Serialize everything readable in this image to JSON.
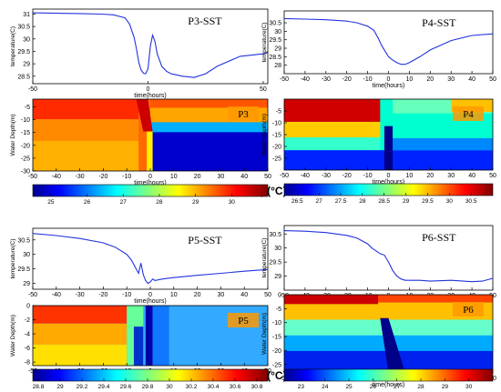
{
  "figure": {
    "colorbar_caption": "Temp(°C)"
  },
  "chart_data": [
    {
      "id": "p3sst",
      "type": "line",
      "title": "P3-SST",
      "xlabel": "time(hours)",
      "ylabel": "temperature(C)",
      "xlim": [
        -50,
        52
      ],
      "ylim": [
        28.2,
        31.2
      ],
      "xticks": [
        -50,
        0,
        50
      ],
      "yticks": [
        28.5,
        29,
        29.5,
        30,
        30.5,
        31
      ],
      "series": [
        {
          "x": [
            -50,
            -30,
            -20,
            -15,
            -10,
            -8,
            -6,
            -5,
            -4,
            -3,
            -2,
            -1,
            0,
            1,
            2,
            3,
            4,
            6,
            8,
            10,
            15,
            20,
            25,
            30,
            40,
            50,
            52
          ],
          "y": [
            31.05,
            31.02,
            31,
            30.97,
            30.85,
            30.6,
            30.05,
            29.6,
            29.05,
            28.75,
            28.62,
            28.6,
            28.8,
            29.7,
            30.15,
            29.9,
            29.4,
            28.9,
            28.7,
            28.6,
            28.5,
            28.45,
            28.6,
            28.9,
            29.3,
            29.4,
            29.45
          ]
        }
      ]
    },
    {
      "id": "p4sst",
      "type": "line",
      "title": "P4-SST",
      "xlabel": "time(hours)",
      "ylabel": "temperature(C)",
      "xlim": [
        -50,
        50
      ],
      "ylim": [
        27.5,
        31.2
      ],
      "xticks": [
        -50,
        -40,
        -30,
        -20,
        -10,
        0,
        10,
        20,
        30,
        40,
        50
      ],
      "yticks": [
        28,
        28.5,
        29,
        29.5,
        30,
        30.5
      ],
      "series": [
        {
          "x": [
            -50,
            -40,
            -30,
            -20,
            -15,
            -10,
            -7,
            -5,
            -3,
            -1,
            0,
            2,
            4,
            6,
            8,
            10,
            15,
            20,
            30,
            40,
            50
          ],
          "y": [
            30.75,
            30.72,
            30.68,
            30.6,
            30.5,
            30.3,
            30.05,
            29.6,
            29.1,
            28.7,
            28.5,
            28.3,
            28.15,
            28.05,
            28.05,
            28.15,
            28.5,
            28.9,
            29.45,
            29.75,
            29.85
          ]
        }
      ]
    },
    {
      "id": "p3heat",
      "type": "heatmap",
      "label": "P3",
      "xlabel": "time(hours)",
      "ylabel": "Water Depth(m)",
      "xlim": [
        -50,
        50
      ],
      "ylim": [
        -30,
        -2
      ],
      "xticks": [
        -50,
        -40,
        -30,
        -20,
        -10,
        0,
        10,
        20,
        30,
        40,
        50
      ],
      "yticks": [
        -5,
        -10,
        -15,
        -20,
        -25,
        -30
      ]
    },
    {
      "id": "p4heat",
      "type": "heatmap",
      "label": "P4",
      "xlabel": "time(hours)",
      "ylabel": "Water Depth(m)",
      "xlim": [
        -50,
        50
      ],
      "ylim": [
        -30,
        0
      ],
      "xticks": [
        -50,
        -40,
        -30,
        -20,
        -10,
        0,
        10,
        20,
        30,
        40,
        50
      ],
      "yticks": [
        -5,
        -10,
        -15,
        -20,
        -25
      ]
    },
    {
      "id": "cb1",
      "type": "heatmap",
      "role": "colorbar",
      "range": [
        24.5,
        31
      ],
      "ticks": [
        25,
        26,
        27,
        28,
        29,
        30
      ]
    },
    {
      "id": "cb2",
      "type": "heatmap",
      "role": "colorbar",
      "range": [
        26.2,
        31
      ],
      "ticks": [
        26.5,
        27,
        27.5,
        28,
        28.5,
        29,
        29.5,
        30,
        30.5
      ]
    },
    {
      "id": "p5sst",
      "type": "line",
      "title": "P5-SST",
      "xlabel": "time(hours)",
      "ylabel": "temperature(C)",
      "xlim": [
        -50,
        50
      ],
      "ylim": [
        28.8,
        30.9
      ],
      "xticks": [
        -50,
        -40,
        -30,
        -20,
        -10,
        0,
        10,
        20,
        30,
        40,
        50
      ],
      "yticks": [
        29,
        29.5,
        30,
        30.5
      ],
      "series": [
        {
          "x": [
            -50,
            -40,
            -30,
            -20,
            -15,
            -10,
            -8,
            -6,
            -5,
            -4,
            -3,
            -2,
            -1,
            0,
            1,
            2,
            5,
            10,
            20,
            30,
            40,
            50
          ],
          "y": [
            30.72,
            30.65,
            30.55,
            30.4,
            30.25,
            30,
            29.8,
            29.5,
            29.35,
            29.7,
            29.3,
            29.1,
            29.0,
            29.05,
            29.15,
            29.1,
            29.15,
            29.2,
            29.28,
            29.35,
            29.42,
            29.48
          ]
        }
      ]
    },
    {
      "id": "p6sst",
      "type": "line",
      "title": "P6-SST",
      "xlabel": "time(hours)",
      "ylabel": "temperature(C)",
      "xlim": [
        -50,
        50
      ],
      "ylim": [
        28.5,
        30.8
      ],
      "xticks": [
        -50,
        -40,
        -30,
        -20,
        -10,
        0,
        10,
        20,
        30,
        40,
        50
      ],
      "yticks": [
        29,
        29.5,
        30,
        30.5
      ],
      "series": [
        {
          "x": [
            -50,
            -40,
            -30,
            -20,
            -15,
            -10,
            -8,
            -6,
            -4,
            -2,
            0,
            2,
            4,
            6,
            8,
            10,
            15,
            20,
            30,
            40,
            45,
            50
          ],
          "y": [
            30.62,
            30.6,
            30.55,
            30.45,
            30.35,
            30.15,
            30,
            29.9,
            29.8,
            29.75,
            29.5,
            29.2,
            29,
            28.9,
            28.85,
            28.85,
            28.85,
            28.82,
            28.85,
            28.8,
            28.82,
            28.92
          ]
        }
      ]
    },
    {
      "id": "p5heat",
      "type": "heatmap",
      "label": "P5",
      "xlabel": "time(hours)",
      "ylabel": "Water Depth(m)",
      "xlim": [
        -50,
        50
      ],
      "ylim": [
        -8.5,
        0
      ],
      "xticks": [
        -50,
        -40,
        -30,
        -20,
        -10,
        0,
        10,
        20,
        30,
        40,
        50
      ],
      "yticks": [
        0,
        -2,
        -4,
        -6,
        -8
      ]
    },
    {
      "id": "p6heat",
      "type": "heatmap",
      "label": "P6",
      "xlabel": "time(hours)",
      "ylabel": "Water Depth(m)",
      "xlim": [
        -50,
        50
      ],
      "ylim": [
        -28,
        0
      ],
      "xticks": [
        -50,
        -40,
        -30,
        -20,
        -10,
        0,
        10,
        20,
        30,
        40,
        50
      ],
      "yticks": [
        0,
        -5,
        -10,
        -15,
        -20,
        -25
      ]
    },
    {
      "id": "cb3",
      "type": "heatmap",
      "role": "colorbar",
      "range": [
        28.75,
        30.9
      ],
      "ticks": [
        28.8,
        29,
        29.2,
        29.4,
        29.6,
        29.8,
        30,
        30.2,
        30.4,
        30.6,
        30.8
      ]
    },
    {
      "id": "cb4",
      "type": "heatmap",
      "role": "colorbar",
      "range": [
        22.3,
        31
      ],
      "ticks": [
        23,
        24,
        25,
        26,
        27,
        28,
        29,
        30
      ]
    }
  ]
}
